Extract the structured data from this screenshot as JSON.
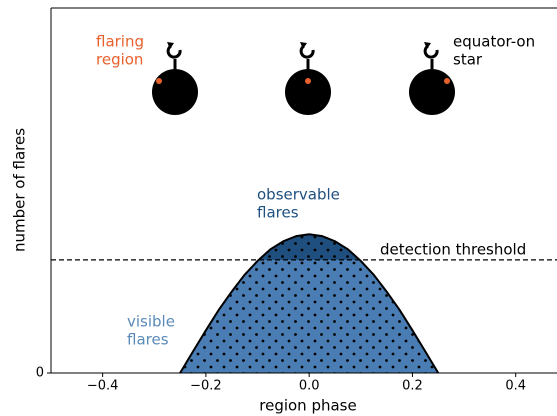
{
  "chart_data": {
    "type": "area",
    "xlabel": "region phase",
    "ylabel": "number of flares",
    "x": [
      -0.25,
      -0.225,
      -0.2,
      -0.175,
      -0.15,
      -0.125,
      -0.1,
      -0.075,
      -0.05,
      -0.025,
      0,
      0.025,
      0.05,
      0.075,
      0.1,
      0.125,
      0.15,
      0.175,
      0.2,
      0.225,
      0.25
    ],
    "values": [
      0,
      0.059,
      0.117,
      0.173,
      0.223,
      0.269,
      0.307,
      0.339,
      0.361,
      0.375,
      0.38,
      0.375,
      0.361,
      0.339,
      0.307,
      0.269,
      0.223,
      0.173,
      0.117,
      0.059,
      0
    ],
    "color": "#4a7db4",
    "cap_color": "#1e4f7f",
    "threshold": 0.31,
    "threshold_label": "detection threshold",
    "xlim": [
      -0.5,
      0.48
    ],
    "ylim": [
      0,
      1
    ],
    "xticks": [
      {
        "value": -0.4,
        "label": "−0.4"
      },
      {
        "value": -0.2,
        "label": "−0.2"
      },
      {
        "value": 0,
        "label": "0.0"
      },
      {
        "value": 0.2,
        "label": "0.2"
      },
      {
        "value": 0.4,
        "label": "0.4"
      }
    ],
    "yticks": [
      0
    ],
    "annotations": {
      "flaring_region": [
        "flaring",
        "region"
      ],
      "equator_on_star": [
        "equator-on",
        "star"
      ],
      "observable_flares": [
        "observable",
        "flares"
      ],
      "visible_flares": [
        "visible",
        "flares"
      ]
    }
  }
}
